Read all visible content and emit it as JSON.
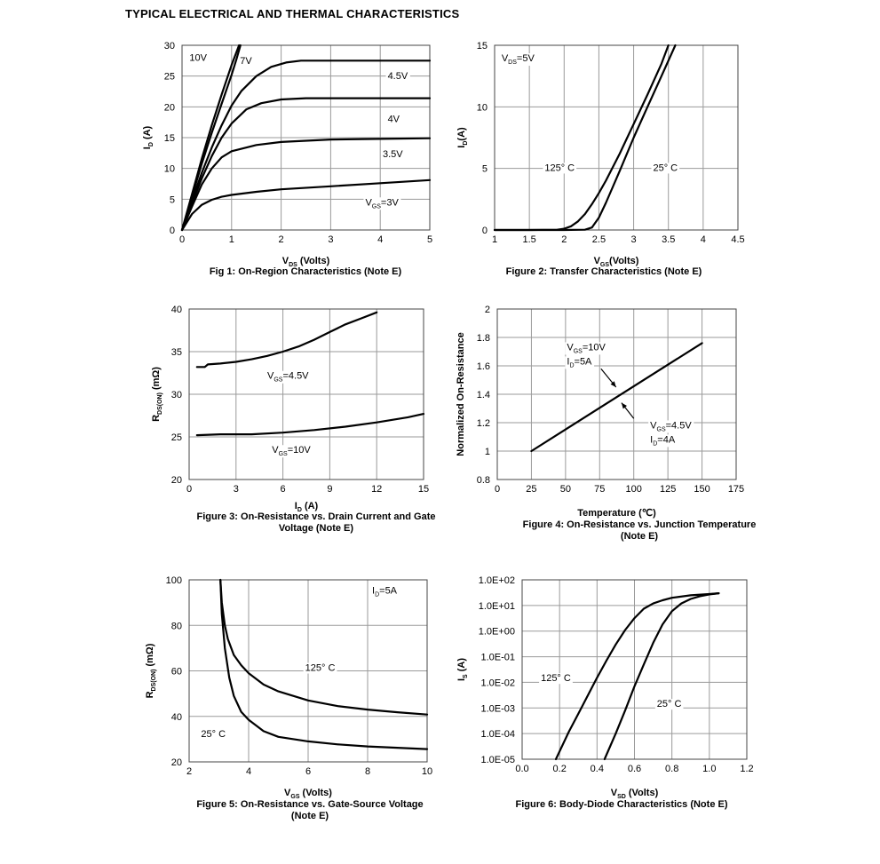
{
  "page_title": "TYPICAL ELECTRICAL AND THERMAL CHARACTERISTICS",
  "chart_data": [
    {
      "id": "fig1",
      "type": "line",
      "caption": [
        "Fig 1: On-Region Characteristics (Note E)"
      ],
      "xlabel": {
        "main": "V",
        "sub": "DS",
        "rest": " (Volts)"
      },
      "ylabel": {
        "main": "I",
        "sub": "D",
        "rest": " (A)"
      },
      "xlim": [
        0,
        5
      ],
      "ylim": [
        0,
        30
      ],
      "xticks": [
        "0",
        "1",
        "2",
        "3",
        "4",
        "5"
      ],
      "yticks": [
        "0",
        "5",
        "10",
        "15",
        "20",
        "25",
        "30"
      ],
      "series": [
        {
          "name": "10V",
          "x": [
            0,
            0.2,
            0.4,
            0.6,
            0.8,
            1.0,
            1.15
          ],
          "y": [
            0,
            5.8,
            11.6,
            17,
            22,
            26.8,
            30
          ]
        },
        {
          "name": "7V",
          "x": [
            0,
            0.2,
            0.4,
            0.6,
            0.8,
            1.0,
            1.1,
            1.18
          ],
          "y": [
            0,
            5.4,
            10.8,
            15.8,
            20.5,
            25.2,
            27.8,
            30
          ]
        },
        {
          "name": "4.5V",
          "x": [
            0,
            0.2,
            0.4,
            0.6,
            0.8,
            1.0,
            1.2,
            1.5,
            1.8,
            2.1,
            2.4,
            3,
            4,
            5
          ],
          "y": [
            0,
            4.8,
            9.3,
            13.4,
            17,
            20.2,
            22.6,
            25,
            26.5,
            27.2,
            27.5,
            27.5,
            27.5,
            27.5
          ]
        },
        {
          "name": "4V",
          "x": [
            0,
            0.2,
            0.4,
            0.6,
            0.8,
            1.0,
            1.3,
            1.6,
            2.0,
            2.5,
            3,
            4,
            5
          ],
          "y": [
            0,
            4.3,
            8.4,
            12,
            15,
            17.3,
            19.6,
            20.6,
            21.2,
            21.4,
            21.4,
            21.4,
            21.4
          ]
        },
        {
          "name": "3.5V",
          "x": [
            0,
            0.2,
            0.4,
            0.6,
            0.8,
            1.0,
            1.5,
            2.0,
            3,
            4,
            5
          ],
          "y": [
            0,
            3.8,
            7.4,
            10,
            11.8,
            12.8,
            13.8,
            14.3,
            14.7,
            14.8,
            14.9
          ]
        },
        {
          "name": "VGS=3V",
          "x": [
            0,
            0.2,
            0.4,
            0.6,
            0.8,
            1.0,
            1.5,
            2,
            3,
            4,
            5
          ],
          "y": [
            0,
            2.6,
            4.1,
            4.9,
            5.4,
            5.7,
            6.2,
            6.6,
            7.1,
            7.6,
            8.1
          ]
        }
      ],
      "annotations": [
        {
          "text": "10V",
          "x": 0.15,
          "y": 27.5
        },
        {
          "text": "7V",
          "x": 1.17,
          "y": 27
        },
        {
          "text": "4.5V",
          "x": 4.15,
          "y": 24.5
        },
        {
          "text": "4V",
          "x": 4.15,
          "y": 17.5
        },
        {
          "text": "3.5V",
          "x": 4.05,
          "y": 11.8
        },
        {
          "text": "V",
          "sub": "GS",
          "rest": "=3V",
          "x": 3.7,
          "y": 4
        }
      ]
    },
    {
      "id": "fig2",
      "type": "line",
      "caption": [
        "Figure 2: Transfer Characteristics (Note E)"
      ],
      "xlabel": {
        "main": "V",
        "sub": "GS",
        "rest": "(Volts)"
      },
      "ylabel": {
        "main": "I",
        "sub": "D",
        "rest": "(A)"
      },
      "xlim": [
        1,
        4.5
      ],
      "ylim": [
        0,
        15
      ],
      "xticks": [
        "1",
        "1.5",
        "2",
        "2.5",
        "3",
        "3.5",
        "4",
        "4.5"
      ],
      "yticks": [
        "0",
        "5",
        "10",
        "15"
      ],
      "series": [
        {
          "name": "125° C",
          "x": [
            1,
            1.5,
            1.9,
            2.0,
            2.1,
            2.2,
            2.3,
            2.4,
            2.5,
            2.6,
            2.7,
            2.8,
            2.9,
            3.0,
            3.2,
            3.4,
            3.5
          ],
          "y": [
            0,
            0,
            0.02,
            0.1,
            0.3,
            0.7,
            1.3,
            2.1,
            3.0,
            4.0,
            5.1,
            6.2,
            7.4,
            8.6,
            11.0,
            13.5,
            15
          ]
        },
        {
          "name": "25° C",
          "x": [
            1,
            1.5,
            2.0,
            2.3,
            2.4,
            2.5,
            2.6,
            2.7,
            2.8,
            3.0,
            3.2,
            3.4,
            3.6
          ],
          "y": [
            0,
            0,
            0,
            0.02,
            0.2,
            1.0,
            2.2,
            3.5,
            4.8,
            7.5,
            10.0,
            12.5,
            15
          ]
        }
      ],
      "annotations": [
        {
          "text": "V",
          "sub": "DS",
          "rest": "=5V",
          "x": 1.1,
          "y": 13.7
        },
        {
          "text": "125° C",
          "x": 1.72,
          "y": 4.8
        },
        {
          "text": "25° C",
          "x": 3.28,
          "y": 4.8
        }
      ]
    },
    {
      "id": "fig3",
      "type": "line",
      "caption": [
        "Figure 3: On-Resistance vs. Drain Current and Gate",
        "Voltage (Note E)"
      ],
      "xlabel": {
        "main": "I",
        "sub": "D",
        "rest": " (A)"
      },
      "ylabel": {
        "main": "R",
        "sub": "DS(ON)",
        "rest": " (mΩ)"
      },
      "xlim": [
        0,
        15
      ],
      "ylim": [
        20,
        40
      ],
      "xticks": [
        "0",
        "3",
        "6",
        "9",
        "12",
        "15"
      ],
      "yticks": [
        "20",
        "25",
        "30",
        "35",
        "40"
      ],
      "series": [
        {
          "name": "VGS=4.5V",
          "x": [
            0.5,
            1,
            1.2,
            2,
            3,
            4,
            5,
            6,
            7,
            8,
            9,
            10,
            11,
            12
          ],
          "y": [
            33.2,
            33.2,
            33.5,
            33.6,
            33.8,
            34.1,
            34.5,
            35.0,
            35.6,
            36.4,
            37.3,
            38.2,
            38.9,
            39.6
          ]
        },
        {
          "name": "VGS=10V",
          "x": [
            0.5,
            2,
            4,
            6,
            8,
            10,
            12,
            14,
            15
          ],
          "y": [
            25.2,
            25.3,
            25.3,
            25.5,
            25.8,
            26.2,
            26.7,
            27.3,
            27.7
          ]
        }
      ],
      "annotations": [
        {
          "text": "V",
          "sub": "GS",
          "rest": "=4.5V",
          "x": 5,
          "y": 31.8
        },
        {
          "text": "V",
          "sub": "GS",
          "rest": "=10V",
          "x": 5.3,
          "y": 23.1
        }
      ]
    },
    {
      "id": "fig4",
      "type": "line",
      "caption": [
        "Figure 4: On-Resistance vs. Junction Temperature",
        "(Note E)"
      ],
      "xlabel": {
        "main": "Temperature (℃)",
        "sub": "",
        "rest": ""
      },
      "ylabel": {
        "main": "Normalized On-Resistance",
        "sub": "",
        "rest": ""
      },
      "xlim": [
        0,
        175
      ],
      "ylim": [
        0.8,
        2
      ],
      "xticks": [
        "0",
        "25",
        "50",
        "75",
        "100",
        "125",
        "150",
        "175"
      ],
      "yticks": [
        "0.8",
        "1",
        "1.2",
        "1.4",
        "1.6",
        "1.8",
        "2"
      ],
      "series": [
        {
          "name": "Normalized On-Resistance",
          "x": [
            25,
            150
          ],
          "y": [
            1.0,
            1.76
          ]
        }
      ],
      "annotations": [
        {
          "text": "V",
          "sub": "GS",
          "rest": "=10V",
          "x": 51,
          "y": 1.71
        },
        {
          "text": "I",
          "sub": "D",
          "rest": "=5A",
          "x": 51,
          "y": 1.61
        },
        {
          "text": "V",
          "sub": "GS",
          "rest": "=4.5V",
          "x": 112,
          "y": 1.16
        },
        {
          "text": "I",
          "sub": "D",
          "rest": "=4A",
          "x": 112,
          "y": 1.06
        }
      ]
    },
    {
      "id": "fig5",
      "type": "line",
      "caption": [
        "Figure 5: On-Resistance vs. Gate-Source Voltage",
        "(Note E)"
      ],
      "xlabel": {
        "main": "V",
        "sub": "GS",
        "rest": " (Volts)"
      },
      "ylabel": {
        "main": "R",
        "sub": "DS(ON)",
        "rest": " (mΩ)"
      },
      "xlim": [
        2,
        10
      ],
      "ylim": [
        20,
        100
      ],
      "xticks": [
        "2",
        "4",
        "6",
        "8",
        "10"
      ],
      "yticks": [
        "20",
        "40",
        "60",
        "80",
        "100"
      ],
      "series": [
        {
          "name": "125° C",
          "x": [
            3.05,
            3.1,
            3.2,
            3.3,
            3.5,
            3.75,
            4,
            4.5,
            5,
            6,
            7,
            8,
            9,
            10
          ],
          "y": [
            100,
            90,
            80,
            74,
            67,
            62.5,
            59,
            54,
            51,
            47,
            44.5,
            43,
            41.8,
            40.8
          ]
        },
        {
          "name": "25° C",
          "x": [
            3.05,
            3.1,
            3.2,
            3.35,
            3.5,
            3.75,
            4,
            4.5,
            5,
            6,
            7,
            8,
            9,
            10
          ],
          "y": [
            100,
            85,
            70,
            57,
            49,
            42,
            38.5,
            33.5,
            31,
            29,
            27.7,
            26.8,
            26.2,
            25.6
          ]
        }
      ],
      "annotations": [
        {
          "text": "I",
          "sub": "D",
          "rest": "=5A",
          "x": 8.15,
          "y": 94
        },
        {
          "text": "125° C",
          "x": 5.9,
          "y": 60
        },
        {
          "text": "25° C",
          "x": 2.4,
          "y": 31
        }
      ]
    },
    {
      "id": "fig6",
      "type": "line",
      "log_y": true,
      "caption": [
        "Figure 6: Body-Diode Characteristics (Note E)"
      ],
      "xlabel": {
        "main": "V",
        "sub": "SD",
        "rest": " (Volts)"
      },
      "ylabel": {
        "main": "I",
        "sub": "S",
        "rest": " (A)"
      },
      "xlim": [
        0,
        1.2
      ],
      "ylim": [
        1e-05,
        100
      ],
      "xticks": [
        "0.0",
        "0.2",
        "0.4",
        "0.6",
        "0.8",
        "1.0",
        "1.2"
      ],
      "yticks": [
        "1.0E-05",
        "1.0E-04",
        "1.0E-03",
        "1.0E-02",
        "1.0E-01",
        "1.0E+00",
        "1.0E+01",
        "1.0E+02"
      ],
      "series": [
        {
          "name": "125° C",
          "x": [
            0.18,
            0.25,
            0.3,
            0.35,
            0.4,
            0.45,
            0.5,
            0.55,
            0.6,
            0.65,
            0.7,
            0.75,
            0.8,
            0.9,
            1.0,
            1.05
          ],
          "y": [
            1e-05,
            0.00012,
            0.0006,
            0.003,
            0.015,
            0.07,
            0.3,
            1.1,
            3.2,
            7.5,
            12,
            16,
            20,
            25,
            28,
            30
          ]
        },
        {
          "name": "25° C",
          "x": [
            0.44,
            0.5,
            0.55,
            0.6,
            0.65,
            0.7,
            0.75,
            0.8,
            0.85,
            0.9,
            0.95,
            1.0,
            1.05
          ],
          "y": [
            1e-05,
            0.0001,
            0.0008,
            0.007,
            0.05,
            0.35,
            1.8,
            6,
            12,
            18,
            23,
            27,
            30
          ]
        }
      ],
      "annotations": [
        {
          "text": "125° C",
          "x": 0.1,
          "y": 0.011
        },
        {
          "text": "25° C",
          "x": 0.72,
          "y": 0.00109
        }
      ]
    }
  ]
}
